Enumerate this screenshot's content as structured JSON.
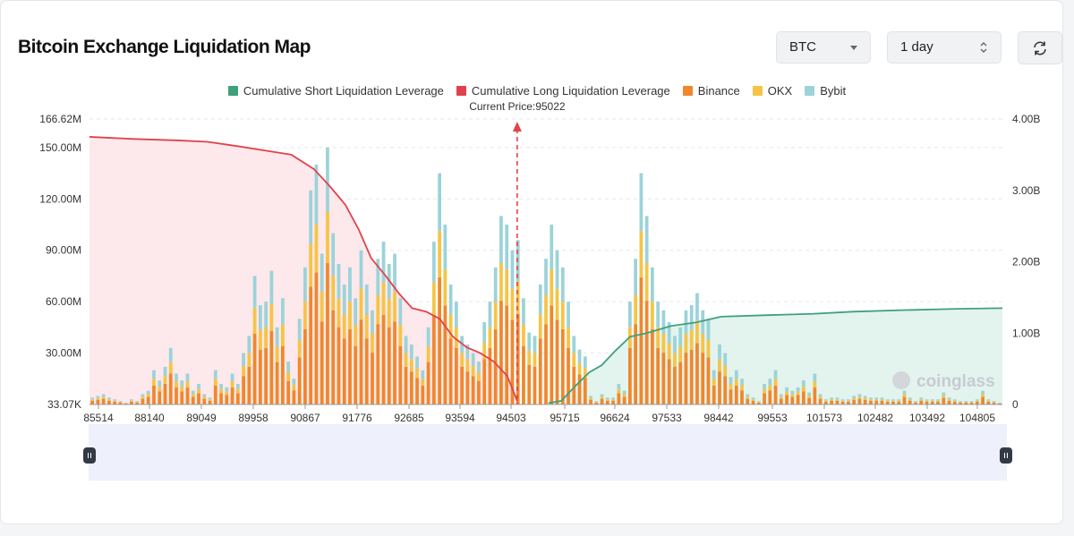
{
  "header": {
    "title": "Bitcoin Exchange Liquidation Map",
    "coin_select": "BTC",
    "range_select": "1 day"
  },
  "colors": {
    "short_line": "#3fa17c",
    "long_line": "#e0424c",
    "binance": "#f0872c",
    "okx": "#f6c445",
    "bybit": "#9bd3d9",
    "short_area": "#e3f3ee",
    "long_area": "#fde8eb"
  },
  "watermark": "coinglass",
  "chart_data": {
    "type": "bar",
    "title": "Bitcoin Exchange Liquidation Map",
    "legend": [
      {
        "name": "Cumulative Short Liquidation Leverage",
        "color": "#3fa17c"
      },
      {
        "name": "Cumulative Long Liquidation Leverage",
        "color": "#e0424c"
      },
      {
        "name": "Binance",
        "color": "#f0872c"
      },
      {
        "name": "OKX",
        "color": "#f6c445"
      },
      {
        "name": "Bybit",
        "color": "#9bd3d9"
      }
    ],
    "legend_position": "top-center",
    "current_price_label": "Current Price:95022",
    "current_price": 95022,
    "y_left_ticks": [
      "166.62M",
      "150.00M",
      "120.00M",
      "90.00M",
      "60.00M",
      "30.00M",
      "33.07K"
    ],
    "y_left_range": [
      0,
      166.62
    ],
    "y_right_ticks": [
      "4.00B",
      "3.00B",
      "2.00B",
      "1.00B",
      "0"
    ],
    "y_right_range": [
      0,
      4.0
    ],
    "x_range": [
      85514,
      105808
    ],
    "x_ticks": [
      85514,
      88140,
      89049,
      89958,
      90867,
      91776,
      92685,
      93594,
      94503,
      95715,
      96624,
      97533,
      98442,
      99553,
      101573,
      102482,
      103492,
      104805
    ],
    "stacked_totals_M": [
      4,
      5,
      6,
      4,
      3,
      2,
      1,
      3,
      2,
      6,
      8,
      20,
      14,
      22,
      33,
      18,
      14,
      18,
      8,
      12,
      6,
      4,
      20,
      12,
      10,
      18,
      12,
      30,
      40,
      75,
      58,
      60,
      78,
      45,
      62,
      25,
      15,
      50,
      80,
      125,
      140,
      88,
      150,
      100,
      82,
      70,
      80,
      62,
      90,
      70,
      55,
      85,
      95,
      82,
      88,
      62,
      40,
      35,
      28,
      20,
      45,
      95,
      135,
      105,
      70,
      60,
      40,
      35,
      30,
      25,
      48,
      60,
      80,
      110,
      105,
      90,
      96,
      62,
      42,
      40,
      70,
      85,
      105,
      90,
      80,
      60,
      40,
      32,
      28,
      5,
      2,
      6,
      4,
      4,
      12,
      8,
      60,
      85,
      135,
      110,
      80,
      60,
      55,
      48,
      40,
      45,
      55,
      58,
      65,
      55,
      50,
      20,
      35,
      30,
      16,
      20,
      15,
      6,
      4,
      2,
      12,
      15,
      20,
      6,
      10,
      8,
      10,
      14,
      7,
      18,
      6,
      3,
      4,
      4,
      3,
      3,
      5,
      6,
      5,
      4,
      4,
      4,
      3,
      3,
      3,
      8,
      4,
      2,
      4,
      3,
      3,
      3,
      7,
      4,
      3,
      2,
      2,
      2,
      3,
      8,
      3,
      2,
      1
    ],
    "split_binance_okx_bybit": [
      0.55,
      0.2,
      0.25
    ],
    "long_curve_B": [
      [
        85514,
        3.75
      ],
      [
        86500,
        3.72
      ],
      [
        87500,
        3.7
      ],
      [
        88140,
        3.68
      ],
      [
        88800,
        3.62
      ],
      [
        89500,
        3.55
      ],
      [
        90000,
        3.5
      ],
      [
        90500,
        3.3
      ],
      [
        90867,
        3.05
      ],
      [
        91200,
        2.8
      ],
      [
        91500,
        2.45
      ],
      [
        91776,
        2.05
      ],
      [
        92100,
        1.8
      ],
      [
        92400,
        1.55
      ],
      [
        92685,
        1.35
      ],
      [
        93000,
        1.3
      ],
      [
        93300,
        1.2
      ],
      [
        93594,
        0.95
      ],
      [
        93900,
        0.8
      ],
      [
        94200,
        0.72
      ],
      [
        94503,
        0.6
      ],
      [
        94800,
        0.4
      ],
      [
        95022,
        0.05
      ]
    ],
    "short_curve_B": [
      [
        95715,
        0.02
      ],
      [
        96000,
        0.05
      ],
      [
        96300,
        0.25
      ],
      [
        96624,
        0.45
      ],
      [
        96900,
        0.55
      ],
      [
        97200,
        0.75
      ],
      [
        97533,
        0.95
      ],
      [
        97900,
        1.0
      ],
      [
        98442,
        1.1
      ],
      [
        99000,
        1.15
      ],
      [
        99553,
        1.23
      ],
      [
        100500,
        1.25
      ],
      [
        101573,
        1.27
      ],
      [
        102482,
        1.3
      ],
      [
        103492,
        1.32
      ],
      [
        104805,
        1.34
      ],
      [
        105808,
        1.35
      ]
    ]
  }
}
